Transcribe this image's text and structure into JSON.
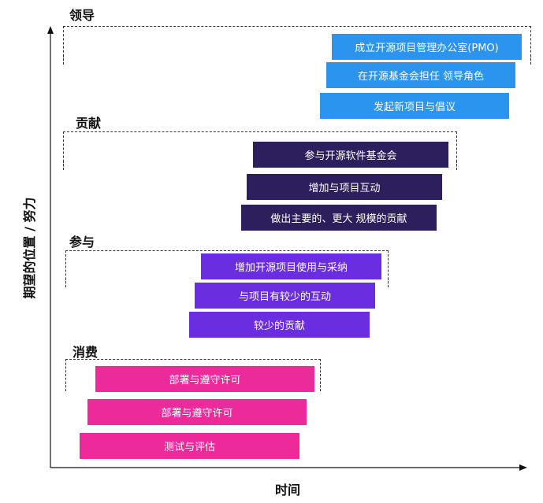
{
  "axis": {
    "x_label": "时间",
    "y_label": "期望的位置 / 努力"
  },
  "colors": {
    "leadership": "#2a94ee",
    "contribution": "#2d1f5e",
    "participation": "#6a2ee0",
    "consumption": "#ec2a9a"
  },
  "groups": [
    {
      "title": "领导",
      "items": [
        "成立开源项目管理办公室(PMO)",
        "在开源基金会担任 领导角色",
        "发起新项目与倡议"
      ]
    },
    {
      "title": "贡献",
      "items": [
        "参与开源软件基金会",
        "增加与项目互动",
        "做出主要的、更大 规模的贡献"
      ]
    },
    {
      "title": "参与",
      "items": [
        "增加开源项目使用与采纳",
        "与项目有较少的互动",
        "较少的贡献"
      ]
    },
    {
      "title": "消费",
      "items": [
        "部署与遵守许可",
        "部署与遵守许可",
        "测试与评估"
      ]
    }
  ]
}
